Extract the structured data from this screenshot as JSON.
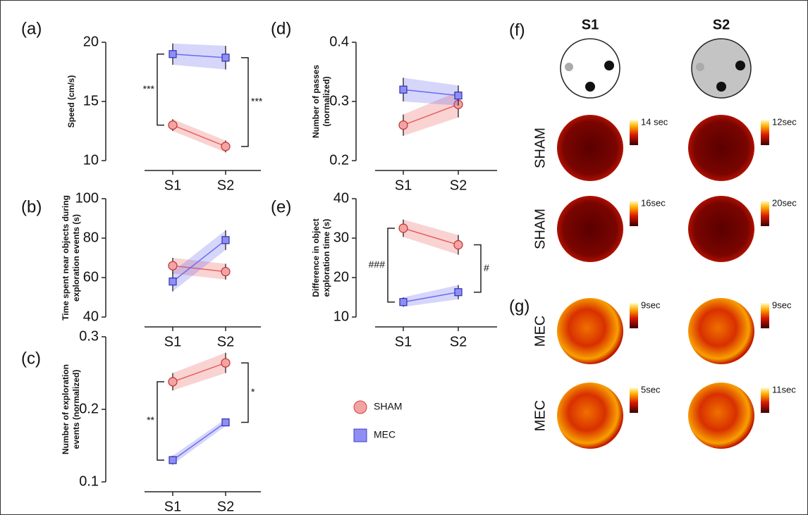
{
  "chart_data": [
    {
      "type": "line",
      "panel": "(a)",
      "ylabel": [
        "Speed (cm/s)"
      ],
      "categories": [
        "S1",
        "S2"
      ],
      "series": [
        {
          "name": "SHAM",
          "color": "#e8605f",
          "values": [
            13.0,
            11.2
          ],
          "errors": [
            0.5,
            0.5
          ]
        },
        {
          "name": "MEC",
          "color": "#6b6bf0",
          "values": [
            19.0,
            18.7
          ],
          "errors": [
            0.9,
            1.0
          ]
        }
      ],
      "ylim": [
        10,
        20
      ],
      "yticks": [
        10,
        15,
        20
      ],
      "annotations": [
        "***",
        "***"
      ]
    },
    {
      "type": "line",
      "panel": "(b)",
      "ylabel": [
        "Time spent near objects during",
        "exploration events (s)"
      ],
      "categories": [
        "S1",
        "S2"
      ],
      "series": [
        {
          "name": "SHAM",
          "color": "#e8605f",
          "values": [
            66,
            63
          ],
          "errors": [
            4,
            4
          ]
        },
        {
          "name": "MEC",
          "color": "#6b6bf0",
          "values": [
            58,
            79
          ],
          "errors": [
            5,
            5
          ]
        }
      ],
      "ylim": [
        40,
        100
      ],
      "yticks": [
        40,
        60,
        80,
        100
      ],
      "annotations": []
    },
    {
      "type": "line",
      "panel": "(c)",
      "ylabel": [
        "Number of exploration",
        "events (normalized)"
      ],
      "categories": [
        "S1",
        "S2"
      ],
      "series": [
        {
          "name": "SHAM",
          "color": "#e8605f",
          "values": [
            0.238,
            0.264
          ],
          "errors": [
            0.012,
            0.014
          ]
        },
        {
          "name": "MEC",
          "color": "#6b6bf0",
          "values": [
            0.13,
            0.182
          ],
          "errors": [
            0.006,
            0.005
          ]
        }
      ],
      "ylim": [
        0.1,
        0.3
      ],
      "yticks": [
        0.1,
        0.2,
        0.3
      ],
      "annotations": [
        "**",
        "*"
      ]
    },
    {
      "type": "line",
      "panel": "(d)",
      "ylabel": [
        "Number of passes",
        "(normalized)"
      ],
      "categories": [
        "S1",
        "S2"
      ],
      "series": [
        {
          "name": "SHAM",
          "color": "#e8605f",
          "values": [
            0.26,
            0.295
          ],
          "errors": [
            0.018,
            0.022
          ]
        },
        {
          "name": "MEC",
          "color": "#6b6bf0",
          "values": [
            0.32,
            0.31
          ],
          "errors": [
            0.02,
            0.017
          ]
        }
      ],
      "ylim": [
        0.2,
        0.4
      ],
      "yticks": [
        0.2,
        0.3,
        0.4
      ],
      "annotations": []
    },
    {
      "type": "line",
      "panel": "(e)",
      "ylabel": [
        "Difference in object",
        "exploration time (s)"
      ],
      "categories": [
        "S1",
        "S2"
      ],
      "series": [
        {
          "name": "SHAM",
          "color": "#e8605f",
          "values": [
            32.5,
            28.3
          ],
          "errors": [
            2.2,
            2.5
          ]
        },
        {
          "name": "MEC",
          "color": "#6b6bf0",
          "values": [
            13.8,
            16.3
          ],
          "errors": [
            1.2,
            1.8
          ]
        }
      ],
      "ylim": [
        10,
        40
      ],
      "yticks": [
        10,
        20,
        30,
        40
      ],
      "annotations": [
        "###",
        "#"
      ]
    }
  ],
  "heatmaps": {
    "panel_f": "(f)",
    "panel_g": "(g)",
    "sessions": [
      "S1",
      "S2"
    ],
    "rows": [
      {
        "group": "SHAM",
        "scales": [
          "14 sec",
          "12sec"
        ]
      },
      {
        "group": "SHAM",
        "scales": [
          "16sec",
          "20sec"
        ]
      },
      {
        "group": "MEC",
        "scales": [
          "9sec",
          "9sec"
        ]
      },
      {
        "group": "MEC",
        "scales": [
          "5sec",
          "11sec"
        ]
      }
    ]
  }
}
